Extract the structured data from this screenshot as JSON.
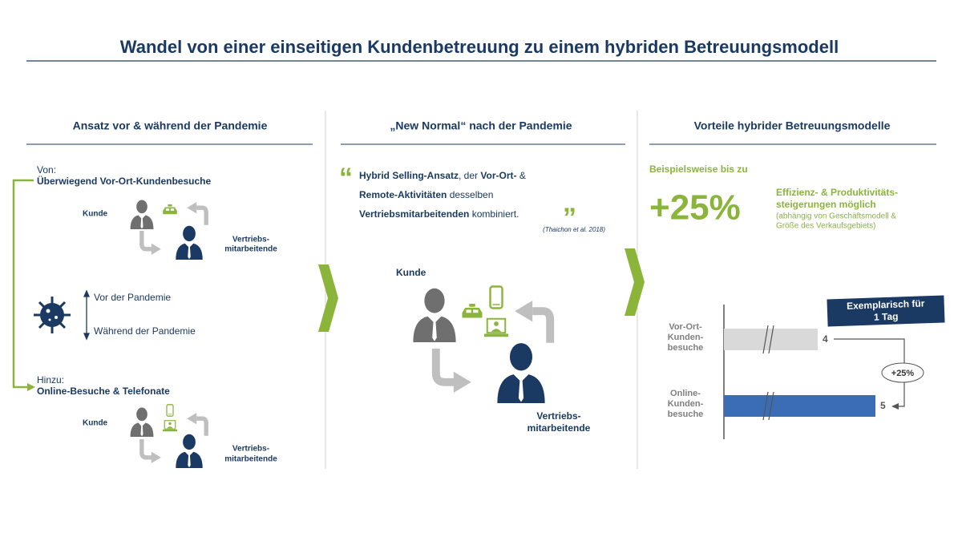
{
  "title": "Wandel von einer einseitigen Kundenbetreuung zu einem hybriden Betreuungsmodell",
  "left": {
    "heading": "Ansatz vor & während der Pandemie",
    "from_label": "Von:",
    "from_text": "Überwiegend Vor-Ort-Kundenbesuche",
    "scene1": {
      "customer": "Kunde",
      "seller": [
        "Vertriebs-",
        "mitarbeitende"
      ]
    },
    "before": "Vor der Pandemie",
    "during": "Während der Pandemie",
    "add_label": "Hinzu:",
    "add_text": "Online-Besuche & Telefonate",
    "scene2": {
      "customer": "Kunde",
      "seller": [
        "Vertriebs-",
        "mitarbeitende"
      ]
    }
  },
  "middle": {
    "heading": "„New Normal“ nach der Pandemie",
    "quote": [
      [
        {
          "text": "Hybrid Selling-Ansatz",
          "bold": true
        },
        {
          "text": ", der ",
          "bold": false
        },
        {
          "text": "Vor-Ort-",
          "bold": true
        },
        {
          "text": " &",
          "bold": false
        }
      ],
      [
        {
          "text": "Remote-Aktivitäten",
          "bold": true
        },
        {
          "text": " desselben",
          "bold": false
        }
      ],
      [
        {
          "text": "Vertriebsmitarbeitenden",
          "bold": true
        },
        {
          "text": " kombiniert.",
          "bold": false
        }
      ]
    ],
    "citation": "(Thaichon et al. 2018)",
    "customer": "Kunde",
    "seller": [
      "Vertriebs-",
      "mitarbeitende"
    ]
  },
  "right": {
    "heading": "Vorteile hybrider Betreuungsmodelle",
    "intro": "Beispielsweise bis zu",
    "big": "+25%",
    "effect": [
      "Effizienz- & Produktivitäts-",
      "steigerungen möglich"
    ],
    "note": [
      "(abhängig von Geschäftsmodell &",
      "Größe des Verkaufsgebiets)"
    ],
    "badge": [
      "Exemplarisch für",
      "1 Tag"
    ],
    "bars": [
      {
        "label": [
          "Vor-Ort-",
          "Kunden-",
          "besuche"
        ],
        "value": 4,
        "color": "#d9d9d9"
      },
      {
        "label": [
          "Online-",
          "Kunden-",
          "besuche"
        ],
        "value": 5,
        "color": "#3a6db5"
      }
    ],
    "delta": "+25%"
  }
}
